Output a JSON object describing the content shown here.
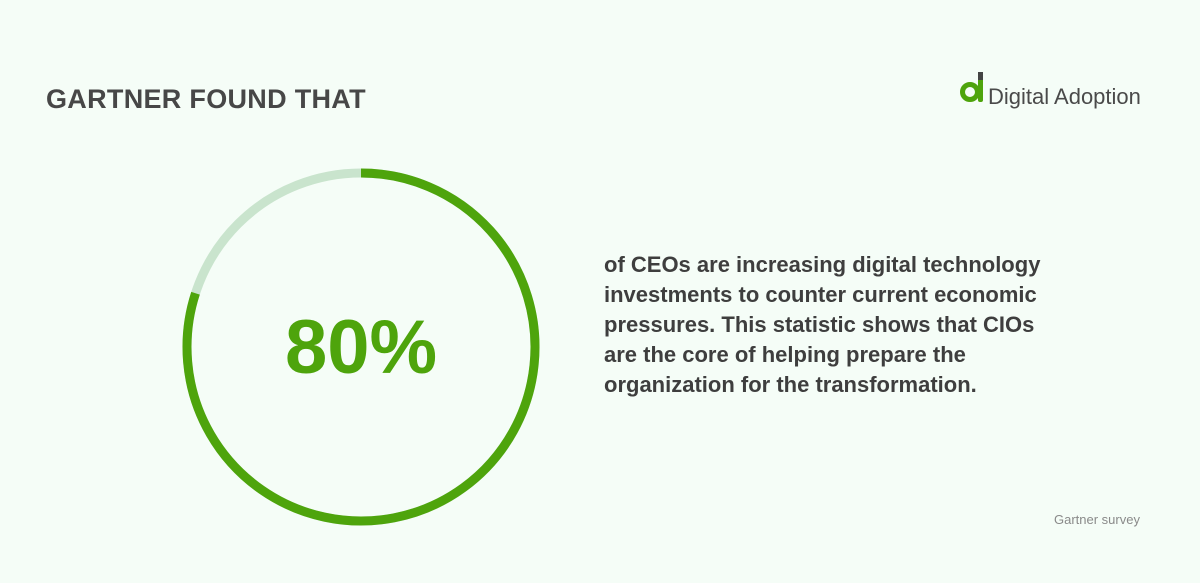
{
  "chart_data": {
    "type": "donut",
    "title": "GARTNER FOUND THAT",
    "brand": "Digital Adoption",
    "values": [
      80
    ],
    "value_labels": [
      "80%"
    ],
    "ylim": [
      0,
      100
    ],
    "color": "#4ea40c",
    "track_color": "#c9e4cd",
    "annotation": "of CEOs are increasing digital technology investments to counter current economic pressures. This statistic shows that CIOs are the core of helping prepare the organization for the transformation.",
    "source": "Gartner survey"
  }
}
